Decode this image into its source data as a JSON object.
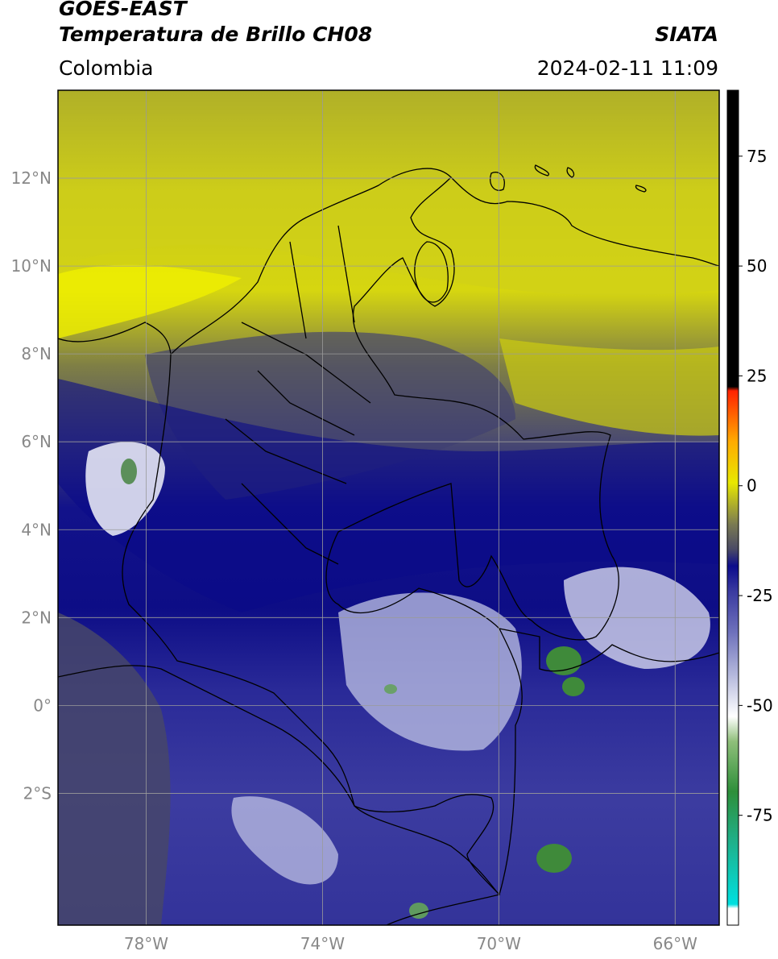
{
  "header": {
    "satellite": "GOES-EAST",
    "product": "Temperatura de Brillo CH08",
    "brand": "SIATA",
    "region": "Colombia",
    "timestamp": "2024-02-11 11:09"
  },
  "map": {
    "lon_range": [
      -80,
      -65
    ],
    "lat_range": [
      -5,
      14
    ],
    "lat_ticks": [
      {
        "value": 12,
        "label": "12°N"
      },
      {
        "value": 10,
        "label": "10°N"
      },
      {
        "value": 8,
        "label": "8°N"
      },
      {
        "value": 6,
        "label": "6°N"
      },
      {
        "value": 4,
        "label": "4°N"
      },
      {
        "value": 2,
        "label": "2°N"
      },
      {
        "value": 0,
        "label": "0°"
      },
      {
        "value": -2,
        "label": "2°S"
      }
    ],
    "lon_ticks": [
      {
        "value": -78,
        "label": "78°W"
      },
      {
        "value": -74,
        "label": "74°W"
      },
      {
        "value": -70,
        "label": "70°W"
      },
      {
        "value": -66,
        "label": "66°W"
      }
    ],
    "grid": true
  },
  "colorbar": {
    "range": [
      -100,
      90
    ],
    "ticks": [
      {
        "value": 75,
        "label": "75"
      },
      {
        "value": 50,
        "label": "50"
      },
      {
        "value": 25,
        "label": "25"
      },
      {
        "value": 0,
        "label": "0"
      },
      {
        "value": -25,
        "label": "-25"
      },
      {
        "value": -50,
        "label": "-50"
      },
      {
        "value": -75,
        "label": "-75"
      }
    ],
    "colors": [
      "#ffffff",
      "#00d8d8",
      "#2a9f6a",
      "#3d8a2a",
      "#dfe8d8",
      "#9aa0cc",
      "#3c3c9c",
      "#0a0a8a",
      "#55556a",
      "#7f7f55",
      "#e0e000",
      "#ff9900",
      "#ff2200",
      "#000000"
    ]
  }
}
